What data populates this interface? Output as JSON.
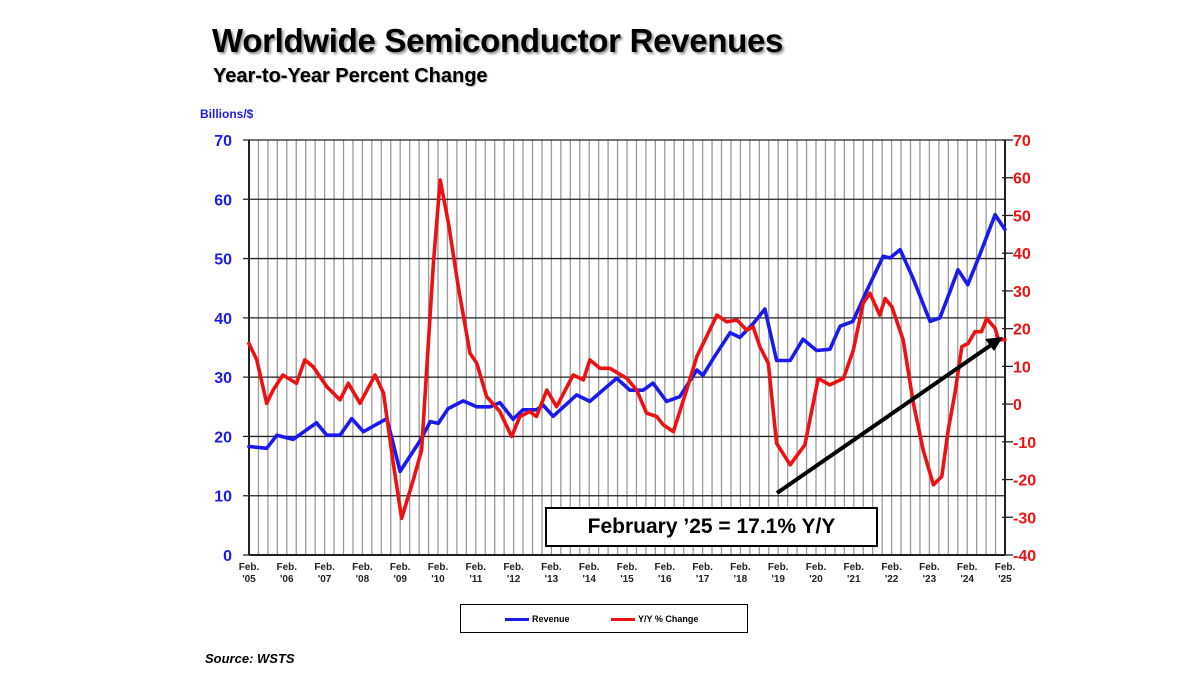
{
  "chart_data": {
    "type": "line",
    "title": "Worldwide Semiconductor Revenues",
    "subtitle": "Year-to-Year Percent Change",
    "ylabel_left": "Billions/$",
    "ylim_left": [
      0,
      70
    ],
    "yticks_left": [
      "0",
      "10",
      "20",
      "30",
      "40",
      "50",
      "60",
      "70"
    ],
    "ylim_right": [
      -40,
      70
    ],
    "yticks_right": [
      "-40",
      "-30",
      "-20",
      "-10",
      "0",
      "10",
      "20",
      "30",
      "40",
      "50",
      "60",
      "70"
    ],
    "xlim": [
      2005.083,
      2025.083
    ],
    "xticks": [
      {
        "top": "Feb.",
        "bottom": "'05"
      },
      {
        "top": "Feb.",
        "bottom": "'06"
      },
      {
        "top": "Feb.",
        "bottom": "'07"
      },
      {
        "top": "Feb.",
        "bottom": "'08"
      },
      {
        "top": "Feb.",
        "bottom": "'09"
      },
      {
        "top": "Feb.",
        "bottom": "'10"
      },
      {
        "top": "Feb.",
        "bottom": "'11"
      },
      {
        "top": "Feb.",
        "bottom": "'12"
      },
      {
        "top": "Feb.",
        "bottom": "'13"
      },
      {
        "top": "Feb.",
        "bottom": "'14"
      },
      {
        "top": "Feb.",
        "bottom": "'15"
      },
      {
        "top": "Feb.",
        "bottom": "'16"
      },
      {
        "top": "Feb.",
        "bottom": "'17"
      },
      {
        "top": "Feb.",
        "bottom": "'18"
      },
      {
        "top": "Feb.",
        "bottom": "'19"
      },
      {
        "top": "Feb.",
        "bottom": "'20"
      },
      {
        "top": "Feb.",
        "bottom": "'21"
      },
      {
        "top": "Feb.",
        "bottom": "'22"
      },
      {
        "top": "Feb.",
        "bottom": "'23"
      },
      {
        "top": "Feb.",
        "bottom": "'24"
      },
      {
        "top": "Feb.",
        "bottom": "'25"
      }
    ],
    "grid": true,
    "legend_placement": "bottom-center",
    "series": [
      {
        "name": "Revenue",
        "axis": "left",
        "color": "#1a1aee",
        "points": [
          [
            2005.08,
            18.3
          ],
          [
            2005.55,
            18
          ],
          [
            2005.82,
            20.2
          ],
          [
            2006.25,
            19.5
          ],
          [
            2006.87,
            22.3
          ],
          [
            2007.14,
            20.2
          ],
          [
            2007.49,
            20.2
          ],
          [
            2007.8,
            23
          ],
          [
            2008.11,
            20.8
          ],
          [
            2008.73,
            23
          ],
          [
            2009.08,
            14.1
          ],
          [
            2009.61,
            19.3
          ],
          [
            2009.88,
            22.5
          ],
          [
            2010.09,
            22.2
          ],
          [
            2010.35,
            24.7
          ],
          [
            2010.75,
            26
          ],
          [
            2011.11,
            25
          ],
          [
            2011.46,
            25
          ],
          [
            2011.72,
            25.7
          ],
          [
            2012.07,
            22.9
          ],
          [
            2012.33,
            24.5
          ],
          [
            2012.69,
            24.5
          ],
          [
            2012.86,
            25.3
          ],
          [
            2013.13,
            23.4
          ],
          [
            2013.75,
            27
          ],
          [
            2014.1,
            25.9
          ],
          [
            2014.81,
            29.8
          ],
          [
            2015.16,
            27.8
          ],
          [
            2015.51,
            27.8
          ],
          [
            2015.77,
            29
          ],
          [
            2016.13,
            25.9
          ],
          [
            2016.48,
            26.7
          ],
          [
            2016.93,
            31.2
          ],
          [
            2017.09,
            30.3
          ],
          [
            2017.36,
            33.1
          ],
          [
            2017.81,
            37.5
          ],
          [
            2018.07,
            36.7
          ],
          [
            2018.42,
            39
          ],
          [
            2018.73,
            41.5
          ],
          [
            2019.04,
            32.8
          ],
          [
            2019.4,
            32.8
          ],
          [
            2019.74,
            36.4
          ],
          [
            2020.1,
            34.5
          ],
          [
            2020.45,
            34.7
          ],
          [
            2020.72,
            38.6
          ],
          [
            2021.06,
            39.4
          ],
          [
            2021.42,
            44.5
          ],
          [
            2021.86,
            50.4
          ],
          [
            2022.04,
            50.1
          ],
          [
            2022.31,
            51.5
          ],
          [
            2022.65,
            46.7
          ],
          [
            2023.1,
            39.4
          ],
          [
            2023.36,
            40
          ],
          [
            2023.63,
            44.5
          ],
          [
            2023.84,
            48.1
          ],
          [
            2024.1,
            45.6
          ],
          [
            2024.42,
            50.7
          ],
          [
            2024.82,
            57.4
          ],
          [
            2025.08,
            54.9
          ]
        ]
      },
      {
        "name": "Y/Y % Change",
        "axis": "right",
        "color": "#ee1111",
        "points": [
          [
            2005.08,
            16.1
          ],
          [
            2005.29,
            11.7
          ],
          [
            2005.55,
            0.2
          ],
          [
            2005.72,
            3.7
          ],
          [
            2005.98,
            7.7
          ],
          [
            2006.34,
            5.5
          ],
          [
            2006.56,
            11.7
          ],
          [
            2006.78,
            9.9
          ],
          [
            2007.14,
            4.6
          ],
          [
            2007.49,
            1.1
          ],
          [
            2007.71,
            5.5
          ],
          [
            2008.02,
            0.2
          ],
          [
            2008.42,
            7.7
          ],
          [
            2008.64,
            2.9
          ],
          [
            2008.9,
            -15.7
          ],
          [
            2009.12,
            -30.3
          ],
          [
            2009.43,
            -20.1
          ],
          [
            2009.65,
            -12.2
          ],
          [
            2009.96,
            37.3
          ],
          [
            2010.14,
            59.4
          ],
          [
            2010.36,
            47.9
          ],
          [
            2010.62,
            31.1
          ],
          [
            2010.93,
            13.5
          ],
          [
            2011.11,
            10.8
          ],
          [
            2011.37,
            2
          ],
          [
            2011.72,
            -2
          ],
          [
            2012.03,
            -8.6
          ],
          [
            2012.25,
            -3.3
          ],
          [
            2012.51,
            -2
          ],
          [
            2012.69,
            -3.3
          ],
          [
            2012.96,
            3.7
          ],
          [
            2013.22,
            -0.7
          ],
          [
            2013.66,
            7.7
          ],
          [
            2013.93,
            6.4
          ],
          [
            2014.1,
            11.7
          ],
          [
            2014.37,
            9.5
          ],
          [
            2014.63,
            9.5
          ],
          [
            2015.08,
            6.8
          ],
          [
            2015.34,
            3.7
          ],
          [
            2015.6,
            -2.4
          ],
          [
            2015.87,
            -3.3
          ],
          [
            2016.04,
            -5.5
          ],
          [
            2016.31,
            -7.3
          ],
          [
            2016.66,
            3.7
          ],
          [
            2016.93,
            12.6
          ],
          [
            2017.19,
            17.9
          ],
          [
            2017.46,
            23.6
          ],
          [
            2017.72,
            21.8
          ],
          [
            2017.99,
            22.3
          ],
          [
            2018.25,
            19.6
          ],
          [
            2018.42,
            20.5
          ],
          [
            2018.6,
            15.2
          ],
          [
            2018.82,
            10.8
          ],
          [
            2019.04,
            -10.4
          ],
          [
            2019.4,
            -16.1
          ],
          [
            2019.79,
            -10.8
          ],
          [
            2020.14,
            6.8
          ],
          [
            2020.45,
            5.1
          ],
          [
            2020.81,
            6.8
          ],
          [
            2021.07,
            14.3
          ],
          [
            2021.33,
            26.7
          ],
          [
            2021.51,
            29.4
          ],
          [
            2021.77,
            23.6
          ],
          [
            2021.91,
            28
          ],
          [
            2022.09,
            25.8
          ],
          [
            2022.39,
            17
          ],
          [
            2022.66,
            0.2
          ],
          [
            2022.92,
            -12.2
          ],
          [
            2023.19,
            -21.4
          ],
          [
            2023.41,
            -19.2
          ],
          [
            2023.58,
            -6.9
          ],
          [
            2023.76,
            2.9
          ],
          [
            2023.94,
            15.2
          ],
          [
            2024.11,
            16.1
          ],
          [
            2024.29,
            19.2
          ],
          [
            2024.46,
            19.2
          ],
          [
            2024.6,
            22.7
          ],
          [
            2024.82,
            20.1
          ],
          [
            2024.91,
            17
          ],
          [
            2025.08,
            17.1
          ]
        ]
      }
    ],
    "annotation": "February ’25 = 17.1% Y/Y",
    "source": "Source: WSTS"
  }
}
